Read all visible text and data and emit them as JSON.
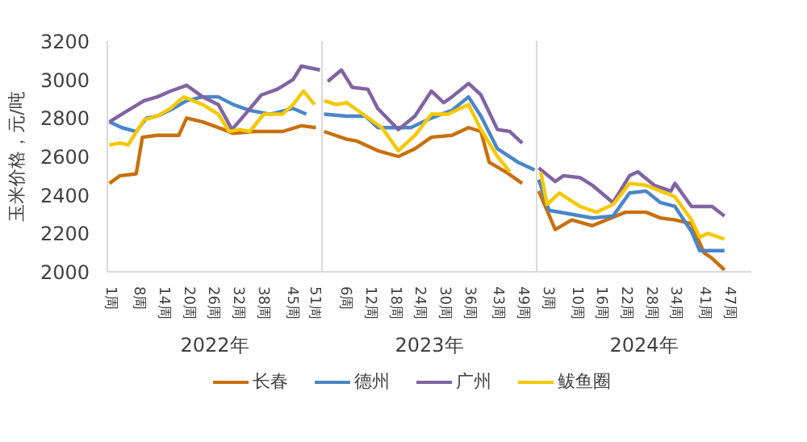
{
  "chart_data": [
    {
      "type": "line",
      "ylabel": "玉米价格，元/吨",
      "xlabel": "2022年",
      "xlim": [
        0.5,
        52.5
      ],
      "xticks": [
        {
          "value": 1,
          "label": "1周"
        },
        {
          "value": 8,
          "label": "8周"
        },
        {
          "value": 14,
          "label": "14周"
        },
        {
          "value": 20,
          "label": "20周"
        },
        {
          "value": 26,
          "label": "26周"
        },
        {
          "value": 32,
          "label": "32周"
        },
        {
          "value": 38,
          "label": "38周"
        },
        {
          "value": 45,
          "label": "45周"
        },
        {
          "value": 51,
          "label": "51周"
        }
      ],
      "ylim": [
        2000,
        3200
      ],
      "yticks": [
        2000,
        2200,
        2400,
        2600,
        2800,
        3000,
        3200
      ],
      "legend": "bottom",
      "series": [
        {
          "name": "长春",
          "color": "#c8700e",
          "x": [
            1,
            3.6,
            7.5,
            9,
            12.6,
            17.8,
            19.7,
            23.6,
            28.7,
            31,
            36,
            43,
            47.5,
            51
          ],
          "values": [
            2460,
            2500,
            2510,
            2700,
            2710,
            2710,
            2800,
            2780,
            2740,
            2720,
            2730,
            2730,
            2760,
            2750
          ]
        },
        {
          "name": "德州",
          "color": "#4a86c8",
          "x": [
            1,
            4,
            7.5,
            10,
            12.6,
            16.5,
            19.7,
            23.6,
            27.4,
            31,
            35,
            40,
            45.5,
            48.7
          ],
          "values": [
            2780,
            2750,
            2730,
            2800,
            2810,
            2850,
            2890,
            2910,
            2910,
            2870,
            2840,
            2820,
            2850,
            2820
          ]
        },
        {
          "name": "广州",
          "color": "#8064a2",
          "x": [
            1,
            5.5,
            9.4,
            12.6,
            15.8,
            19.7,
            23.6,
            27.4,
            30.7,
            33.9,
            37.8,
            41.7,
            45.5,
            47.5,
            52
          ],
          "values": [
            2780,
            2840,
            2890,
            2910,
            2940,
            2970,
            2910,
            2870,
            2740,
            2820,
            2920,
            2950,
            3000,
            3070,
            3050
          ]
        },
        {
          "name": "鲅鱼圈",
          "color": "#f5c800",
          "x": [
            1,
            3.6,
            5.5,
            9.4,
            12.6,
            15.8,
            19,
            23.6,
            27.4,
            30,
            32.6,
            35,
            38.4,
            42.9,
            45.5,
            48,
            50.7
          ],
          "values": [
            2660,
            2670,
            2660,
            2790,
            2810,
            2850,
            2910,
            2870,
            2820,
            2730,
            2740,
            2730,
            2820,
            2820,
            2870,
            2940,
            2870
          ]
        }
      ]
    },
    {
      "type": "line",
      "xlabel": "2023年",
      "xlim": [
        0.5,
        52.5
      ],
      "xticks": [
        {
          "value": 6,
          "label": "6周"
        },
        {
          "value": 12,
          "label": "12周"
        },
        {
          "value": 18,
          "label": "18周"
        },
        {
          "value": 24,
          "label": "24周"
        },
        {
          "value": 30,
          "label": "30周"
        },
        {
          "value": 36,
          "label": "36周"
        },
        {
          "value": 43,
          "label": "43周"
        },
        {
          "value": 49,
          "label": "49周"
        }
      ],
      "ylim": [
        2000,
        3200
      ],
      "tick_labels": "x",
      "series": [
        {
          "color": "#c8700e",
          "x": [
            1,
            6.5,
            9,
            14,
            19,
            23,
            27,
            32,
            36,
            39,
            41,
            45,
            49
          ],
          "values": [
            2730,
            2690,
            2680,
            2630,
            2600,
            2640,
            2700,
            2710,
            2750,
            2730,
            2570,
            2520,
            2460
          ]
        },
        {
          "color": "#4a86c8",
          "x": [
            1,
            6.5,
            11,
            14,
            22,
            27,
            32,
            36,
            39,
            43,
            48,
            52
          ],
          "values": [
            2820,
            2810,
            2810,
            2750,
            2750,
            2800,
            2840,
            2910,
            2810,
            2640,
            2570,
            2530
          ]
        },
        {
          "color": "#8064a2",
          "x": [
            1.9,
            5.2,
            7.8,
            11.6,
            14,
            19,
            23,
            27,
            30,
            32,
            36,
            39,
            43,
            46,
            49
          ],
          "values": [
            2990,
            3050,
            2960,
            2950,
            2850,
            2740,
            2810,
            2940,
            2880,
            2910,
            2980,
            2920,
            2740,
            2730,
            2670
          ]
        },
        {
          "color": "#f5c800",
          "x": [
            1,
            4,
            6.5,
            10.4,
            15,
            19,
            23,
            27,
            31,
            36,
            39,
            43,
            46
          ],
          "values": [
            2890,
            2870,
            2880,
            2820,
            2750,
            2630,
            2710,
            2820,
            2820,
            2870,
            2740,
            2600,
            2520
          ]
        }
      ]
    },
    {
      "type": "line",
      "xlabel": "2024年",
      "xlim": [
        0.5,
        52.5
      ],
      "xticks": [
        {
          "value": 3,
          "label": "3周"
        },
        {
          "value": 10,
          "label": "10周"
        },
        {
          "value": 16,
          "label": "16周"
        },
        {
          "value": 22,
          "label": "22周"
        },
        {
          "value": 28,
          "label": "28周"
        },
        {
          "value": 34,
          "label": "34周"
        },
        {
          "value": 41,
          "label": "41周"
        },
        {
          "value": 47,
          "label": "47周"
        }
      ],
      "ylim": [
        2000,
        3200
      ],
      "tick_labels": "x",
      "series": [
        {
          "color": "#c8700e",
          "x": [
            1,
            5,
            9,
            14,
            22,
            27,
            30.5,
            34,
            38,
            41,
            43,
            46
          ],
          "values": [
            2420,
            2220,
            2270,
            2240,
            2310,
            2310,
            2280,
            2270,
            2250,
            2100,
            2070,
            2010
          ]
        },
        {
          "color": "#4a86c8",
          "x": [
            1,
            3.5,
            14,
            19,
            23,
            27,
            30.5,
            34,
            38,
            40,
            46
          ],
          "values": [
            2480,
            2320,
            2280,
            2290,
            2410,
            2420,
            2360,
            2340,
            2210,
            2110,
            2110
          ]
        },
        {
          "color": "#8064a2",
          "x": [
            1,
            5,
            7,
            11,
            14,
            19,
            23,
            25,
            29,
            33,
            34,
            38,
            43,
            46
          ],
          "values": [
            2540,
            2470,
            2500,
            2490,
            2450,
            2360,
            2500,
            2520,
            2450,
            2420,
            2460,
            2340,
            2340,
            2290
          ]
        },
        {
          "color": "#f5c800",
          "x": [
            1.5,
            3,
            6,
            11,
            15,
            19,
            23,
            27,
            30.5,
            34,
            38,
            40,
            42,
            46
          ],
          "values": [
            2520,
            2350,
            2410,
            2340,
            2310,
            2350,
            2460,
            2450,
            2420,
            2390,
            2270,
            2180,
            2200,
            2170
          ]
        }
      ]
    }
  ]
}
